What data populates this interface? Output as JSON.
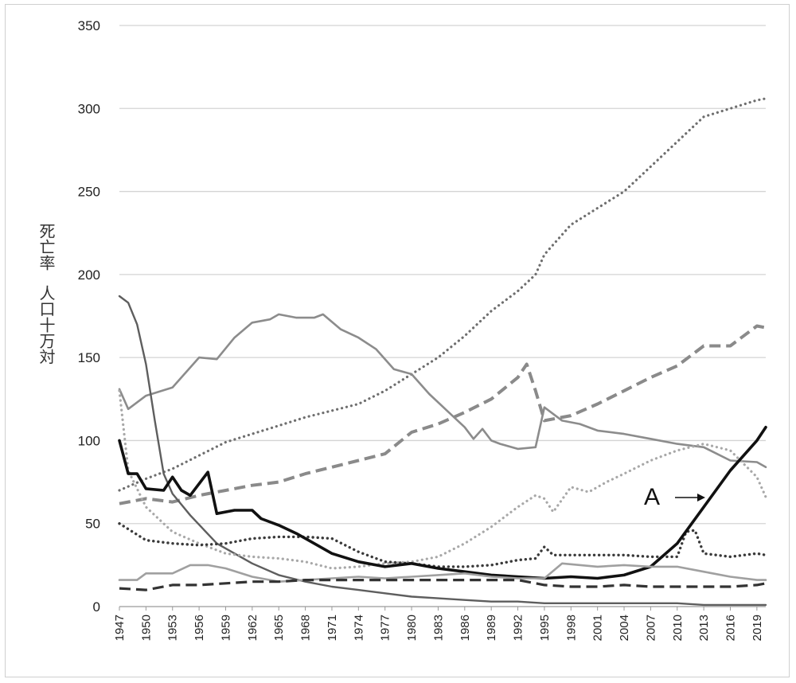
{
  "chart_data": {
    "type": "line",
    "title": "",
    "ylabel_line1": "死亡率",
    "ylabel_line2": "人口十万対",
    "xlabel": "",
    "ylim": [
      0,
      350
    ],
    "yticks": [
      "0",
      "50",
      "100",
      "150",
      "200",
      "250",
      "300",
      "350"
    ],
    "xticks": [
      "1947",
      "1950",
      "1953",
      "1956",
      "1959",
      "1962",
      "1965",
      "1968",
      "1971",
      "1974",
      "1977",
      "1980",
      "1983",
      "1986",
      "1989",
      "1992",
      "1995",
      "1998",
      "2001",
      "2004",
      "2007",
      "2010",
      "2013",
      "2016",
      "2019"
    ],
    "annotation": "A",
    "grid": "horizontal",
    "legend": "none",
    "series": [
      {
        "key": "s1",
        "style": "dotted-dark-gray",
        "x": [
          1947,
          1950,
          1953,
          1956,
          1959,
          1962,
          1965,
          1968,
          1971,
          1974,
          1977,
          1980,
          1983,
          1986,
          1989,
          1992,
          1994,
          1995,
          1998,
          2001,
          2004,
          2007,
          2010,
          2013,
          2016,
          2019,
          2020
        ],
        "y": [
          70,
          77,
          83,
          91,
          99,
          104,
          109,
          114,
          118,
          122,
          130,
          140,
          150,
          163,
          178,
          190,
          200,
          212,
          230,
          240,
          250,
          265,
          280,
          295,
          300,
          305,
          306
        ]
      },
      {
        "key": "s2",
        "style": "dashed-gray",
        "x": [
          1947,
          1950,
          1953,
          1956,
          1959,
          1962,
          1965,
          1968,
          1971,
          1974,
          1977,
          1980,
          1983,
          1986,
          1989,
          1992,
          1993,
          1994,
          1995,
          1998,
          2001,
          2004,
          2007,
          2010,
          2013,
          2016,
          2019,
          2020
        ],
        "y": [
          62,
          65,
          63,
          67,
          70,
          73,
          75,
          80,
          84,
          88,
          92,
          105,
          110,
          117,
          125,
          138,
          146,
          130,
          112,
          115,
          122,
          130,
          138,
          145,
          157,
          157,
          169,
          168
        ]
      },
      {
        "key": "s3",
        "style": "solid-gray",
        "x": [
          1947,
          1948,
          1950,
          1953,
          1956,
          1958,
          1960,
          1962,
          1964,
          1965,
          1967,
          1969,
          1970,
          1972,
          1974,
          1976,
          1978,
          1980,
          1982,
          1984,
          1986,
          1987,
          1988,
          1989,
          1990,
          1992,
          1994,
          1995,
          1997,
          1999,
          2001,
          2004,
          2007,
          2010,
          2013,
          2016,
          2019,
          2020
        ],
        "y": [
          131,
          119,
          127,
          132,
          150,
          149,
          162,
          171,
          173,
          176,
          174,
          174,
          176,
          167,
          162,
          155,
          143,
          140,
          128,
          118,
          108,
          101,
          107,
          100,
          98,
          95,
          96,
          120,
          112,
          110,
          106,
          104,
          101,
          98,
          96,
          88,
          87,
          84
        ]
      },
      {
        "key": "s4",
        "style": "solid-dark-gray",
        "x": [
          1947,
          1948,
          1949,
          1950,
          1951,
          1952,
          1953,
          1955,
          1958,
          1962,
          1965,
          1968,
          1971,
          1974,
          1977,
          1980,
          1983,
          1986,
          1989,
          1992,
          1995,
          1998,
          2001,
          2004,
          2007,
          2010,
          2013,
          2016,
          2020
        ],
        "y": [
          187,
          183,
          170,
          146,
          112,
          80,
          68,
          55,
          38,
          26,
          19,
          15,
          12,
          10,
          8,
          6,
          5,
          4,
          3,
          3,
          2,
          2,
          2,
          2,
          2,
          2,
          1,
          1,
          1
        ]
      },
      {
        "key": "s5",
        "style": "dotted-light-gray",
        "x": [
          1947,
          1948,
          1950,
          1953,
          1956,
          1959,
          1962,
          1965,
          1968,
          1971,
          1974,
          1977,
          1980,
          1983,
          1986,
          1989,
          1992,
          1994,
          1995,
          1996,
          1998,
          2000,
          2002,
          2004,
          2007,
          2010,
          2013,
          2016,
          2019,
          2020
        ],
        "y": [
          130,
          82,
          60,
          45,
          38,
          32,
          30,
          29,
          27,
          23,
          24,
          26,
          27,
          30,
          38,
          48,
          60,
          67,
          65,
          57,
          72,
          69,
          75,
          80,
          88,
          94,
          98,
          94,
          78,
          66
        ]
      },
      {
        "key": "s6",
        "style": "dotted-dark",
        "x": [
          1947,
          1950,
          1953,
          1956,
          1959,
          1962,
          1965,
          1968,
          1971,
          1974,
          1977,
          1980,
          1983,
          1986,
          1989,
          1992,
          1994,
          1995,
          1996,
          1998,
          2001,
          2004,
          2007,
          2010,
          2011,
          2012,
          2013,
          2016,
          2019,
          2020
        ],
        "y": [
          50,
          40,
          38,
          37,
          38,
          41,
          42,
          42,
          41,
          33,
          27,
          26,
          24,
          24,
          25,
          28,
          29,
          36,
          31,
          31,
          31,
          31,
          30,
          30,
          45,
          46,
          32,
          30,
          32,
          31
        ]
      },
      {
        "key": "s7",
        "style": "solid-black-thick",
        "x": [
          1947,
          1948,
          1949,
          1950,
          1952,
          1953,
          1954,
          1955,
          1957,
          1958,
          1960,
          1962,
          1963,
          1965,
          1967,
          1969,
          1971,
          1974,
          1977,
          1980,
          1983,
          1986,
          1989,
          1992,
          1995,
          1998,
          2001,
          2004,
          2007,
          2010,
          2013,
          2016,
          2019,
          2020
        ],
        "y": [
          100,
          80,
          80,
          71,
          70,
          78,
          70,
          67,
          81,
          56,
          58,
          58,
          53,
          49,
          44,
          38,
          32,
          27,
          24,
          26,
          23,
          21,
          19,
          18,
          17,
          18,
          17,
          19,
          24,
          38,
          60,
          82,
          100,
          108
        ]
      },
      {
        "key": "s8",
        "style": "solid-light-gray",
        "x": [
          1947,
          1949,
          1950,
          1953,
          1955,
          1957,
          1959,
          1962,
          1965,
          1968,
          1971,
          1974,
          1977,
          1980,
          1983,
          1986,
          1989,
          1992,
          1995,
          1997,
          2001,
          2004,
          2007,
          2010,
          2013,
          2016,
          2019,
          2020
        ],
        "y": [
          16,
          16,
          20,
          20,
          25,
          25,
          23,
          18,
          15,
          16,
          17,
          18,
          17,
          18,
          19,
          20,
          18,
          17,
          17,
          26,
          24,
          25,
          24,
          24,
          21,
          18,
          16,
          16
        ]
      },
      {
        "key": "s9",
        "style": "dashed-dark",
        "x": [
          1947,
          1950,
          1953,
          1956,
          1959,
          1962,
          1965,
          1968,
          1971,
          1974,
          1977,
          1980,
          1983,
          1986,
          1989,
          1992,
          1995,
          1998,
          2001,
          2004,
          2007,
          2010,
          2013,
          2016,
          2019,
          2020
        ],
        "y": [
          11,
          10,
          13,
          13,
          14,
          15,
          15,
          16,
          16,
          16,
          16,
          16,
          16,
          16,
          16,
          16,
          13,
          12,
          12,
          13,
          12,
          12,
          12,
          12,
          13,
          14
        ]
      }
    ]
  }
}
